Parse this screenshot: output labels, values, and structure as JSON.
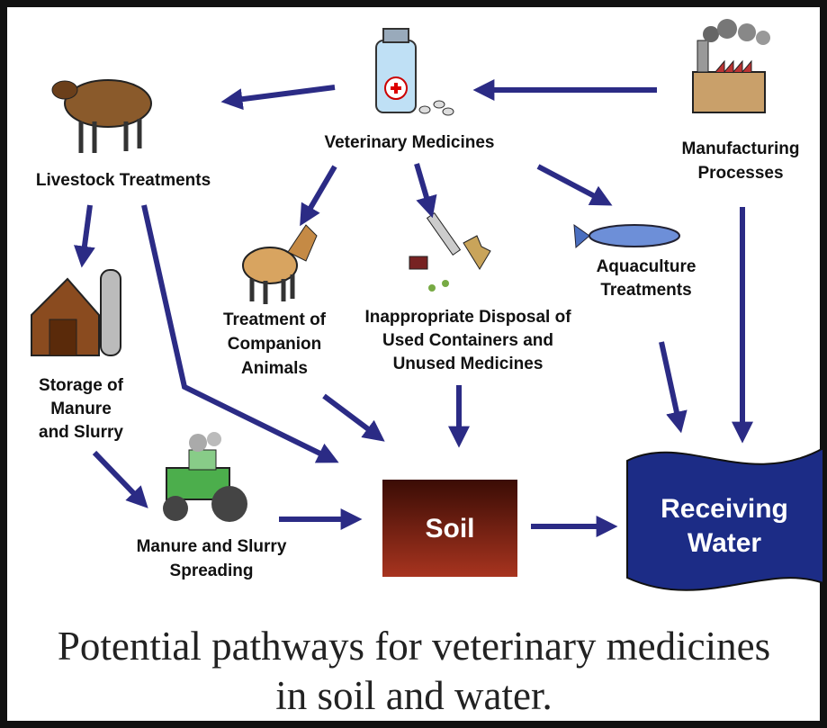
{
  "nodes": [
    {
      "lines": [
        "Veterinary Medicines"
      ]
    },
    {
      "lines": [
        "Livestock Treatments"
      ]
    },
    {
      "lines": [
        "Manufacturing",
        "Processes"
      ]
    },
    {
      "lines": [
        "Treatment of",
        "Companion",
        "Animals"
      ]
    },
    {
      "lines": [
        "Inappropriate Disposal of",
        "Used Containers and",
        "Unused Medicines"
      ]
    },
    {
      "lines": [
        "Aquaculture",
        "Treatments"
      ]
    },
    {
      "lines": [
        "Storage of",
        "Manure",
        "and Slurry"
      ]
    },
    {
      "lines": [
        "Manure and Slurry",
        "Spreading"
      ]
    },
    {
      "lines": [
        "Soil"
      ]
    },
    {
      "lines": [
        "Receiving",
        "Water"
      ]
    }
  ],
  "caption": [
    "Potential pathways for veterinary medicines",
    "in soil and water."
  ]
}
